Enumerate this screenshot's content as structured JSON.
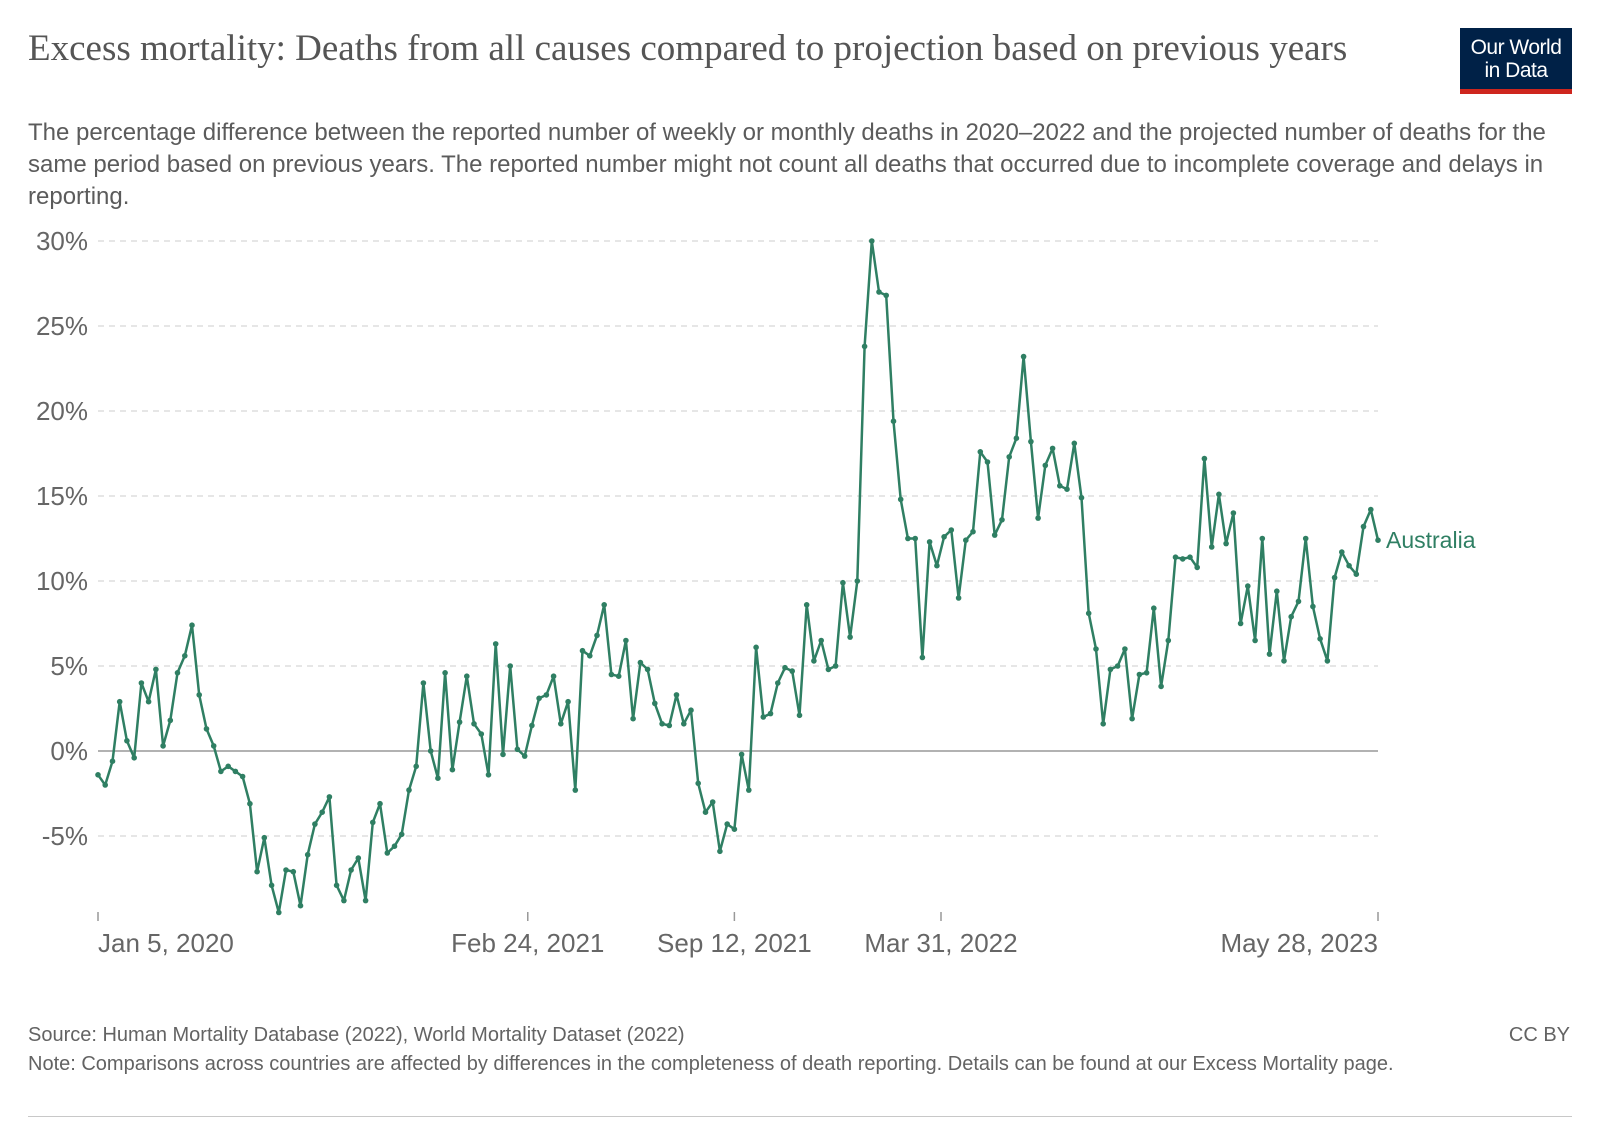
{
  "header": {
    "title": "Excess mortality: Deaths from all causes compared to projection based on previous years",
    "subtitle": "The percentage difference between the reported number of weekly or monthly deaths in 2020–2022 and the projected number of deaths for the same period based on previous years. The reported number might not count all deaths that occurred due to incomplete coverage and delays in reporting.",
    "logo_text": "Our World in Data"
  },
  "colors": {
    "series": "#2f7f63",
    "grid": "#dddddd",
    "zero_line": "#999999",
    "axis_text": "#666666",
    "logo_bg": "#002147",
    "logo_accent": "#ce261e"
  },
  "chart_data": {
    "type": "line",
    "title": "Excess mortality: Deaths from all causes compared to projection based on previous years",
    "xlabel": "",
    "ylabel": "",
    "ylim": [
      -9.5,
      30
    ],
    "yticks": [
      -5,
      0,
      5,
      10,
      15,
      20,
      25,
      30
    ],
    "ytick_labels": [
      "-5%",
      "0%",
      "5%",
      "10%",
      "15%",
      "20%",
      "25%",
      "30%"
    ],
    "x_start": "2020-01-05",
    "x_end": "2023-05-28",
    "xticks": [
      "2020-01-05",
      "2021-02-24",
      "2021-09-12",
      "2022-03-31",
      "2023-05-28"
    ],
    "xtick_labels": [
      "Jan 5, 2020",
      "Feb 24, 2021",
      "Sep 12, 2021",
      "Mar 31, 2022",
      "May 28, 2023"
    ],
    "grid": "horizontal dashed",
    "legend": "series label at line end (right)",
    "series": [
      {
        "name": "Australia",
        "color": "#2f7f63",
        "values": [
          -1.4,
          -2.0,
          -0.6,
          2.9,
          0.6,
          -0.4,
          4.0,
          2.9,
          4.8,
          0.3,
          1.8,
          4.6,
          5.6,
          7.4,
          3.3,
          1.3,
          0.3,
          -1.2,
          -0.9,
          -1.2,
          -1.5,
          -3.1,
          -7.1,
          -5.1,
          -7.9,
          -9.5,
          -7.0,
          -7.1,
          -9.1,
          -6.1,
          -4.3,
          -3.6,
          -2.7,
          -7.9,
          -8.8,
          -7.0,
          -6.3,
          -8.8,
          -4.2,
          -3.1,
          -6.0,
          -5.6,
          -4.9,
          -2.3,
          -0.9,
          4.0,
          0.0,
          -1.6,
          4.6,
          -1.1,
          1.7,
          4.4,
          1.6,
          1.0,
          -1.4,
          6.3,
          -0.2,
          5.0,
          0.1,
          -0.3,
          1.5,
          3.1,
          3.3,
          4.4,
          1.6,
          2.9,
          -2.3,
          5.9,
          5.6,
          6.8,
          8.6,
          4.5,
          4.4,
          6.5,
          1.9,
          5.2,
          4.8,
          2.8,
          1.6,
          1.5,
          3.3,
          1.6,
          2.4,
          -1.9,
          -3.6,
          -3.0,
          -5.9,
          -4.3,
          -4.6,
          -0.2,
          -2.3,
          6.1,
          2.0,
          2.2,
          4.0,
          4.9,
          4.7,
          2.1,
          8.6,
          5.3,
          6.5,
          4.8,
          5.0,
          9.9,
          6.7,
          10.0,
          23.8,
          30.0,
          27.0,
          26.8,
          19.4,
          14.8,
          12.5,
          12.5,
          5.5,
          12.3,
          10.9,
          12.6,
          13.0,
          9.0,
          12.4,
          12.9,
          17.6,
          17.0,
          12.7,
          13.6,
          17.3,
          18.4,
          23.2,
          18.2,
          13.7,
          16.8,
          17.8,
          15.6,
          15.4,
          18.1,
          14.9,
          8.1,
          6.0,
          1.6,
          4.8,
          5.0,
          6.0,
          1.9,
          4.5,
          4.6,
          8.4,
          3.8,
          6.5,
          11.4,
          11.3,
          11.4,
          10.8,
          17.2,
          12.0,
          15.1,
          12.2,
          14.0,
          7.5,
          9.7,
          6.5,
          12.5,
          5.7,
          9.4,
          5.3,
          7.9,
          8.8,
          12.5,
          8.5,
          6.6,
          5.3,
          10.2,
          11.7,
          10.9,
          10.4,
          13.2,
          14.2,
          12.4
        ]
      }
    ]
  },
  "footer": {
    "source": "Source: Human Mortality Database (2022), World Mortality Dataset (2022)",
    "license": "CC BY",
    "note": "Note: Comparisons across countries are affected by differences in the completeness of death reporting. Details can be found at our Excess Mortality page."
  }
}
